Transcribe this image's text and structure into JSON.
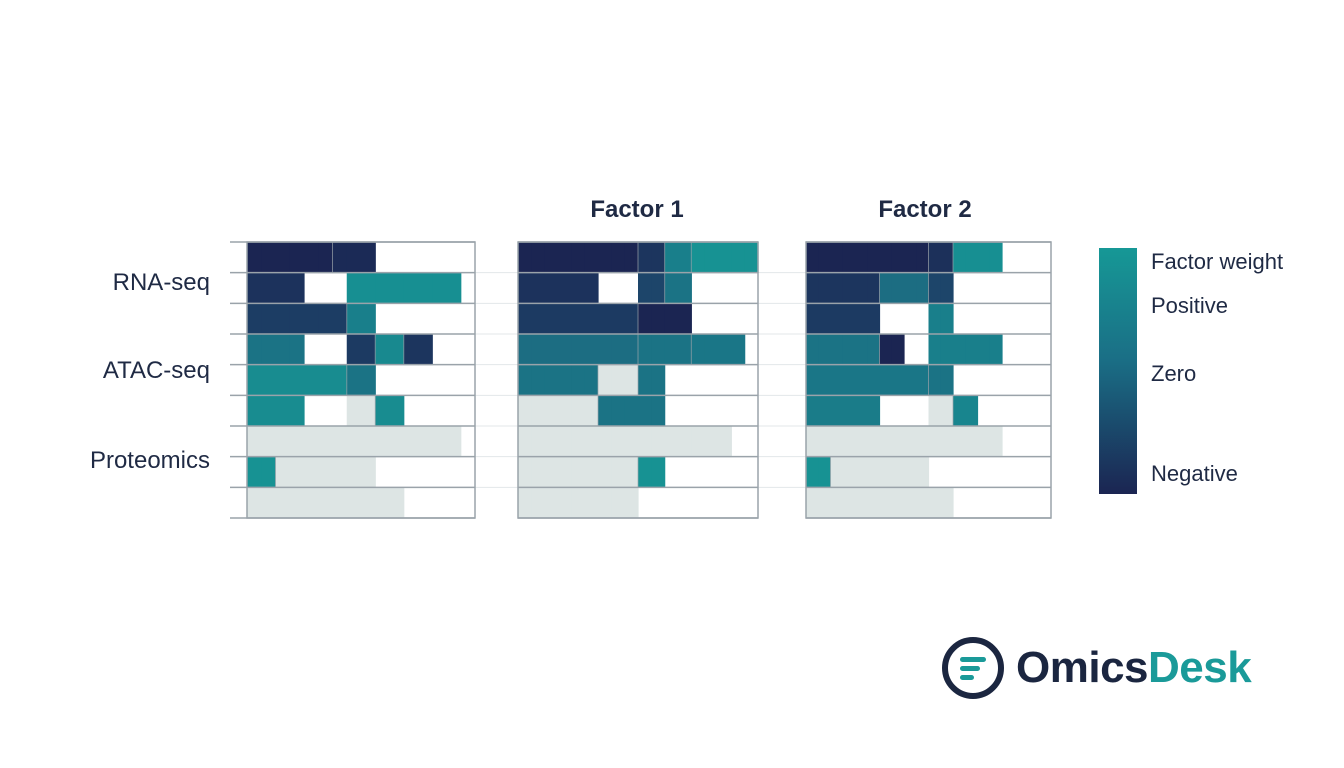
{
  "chart_data": {
    "type": "heatmap",
    "row_groups": [
      "RNA-seq",
      "ATAC-seq",
      "Proteomics"
    ],
    "panels": [
      {
        "title": "",
        "rows": [
          [
            -1,
            -1,
            -1,
            -1,
            -1,
            -1,
            -0.9,
            -0.9,
            -0.9,
            null,
            null,
            null,
            null,
            null,
            null,
            null
          ],
          [
            -0.75,
            -0.75,
            -0.75,
            -0.75,
            null,
            null,
            null,
            0.85,
            0.85,
            0.85,
            0.85,
            0.85,
            0.85,
            0.85,
            0.85,
            null
          ],
          [
            -0.55,
            -0.55,
            -0.55,
            -0.55,
            -0.55,
            -0.55,
            -0.55,
            0.6,
            0.6,
            null,
            null,
            null,
            null,
            null,
            null,
            null
          ],
          [
            0.4,
            0.4,
            0.4,
            0.4,
            null,
            null,
            null,
            -0.6,
            -0.6,
            0.75,
            0.75,
            -0.7,
            -0.7,
            null,
            null,
            null
          ],
          [
            0.8,
            0.8,
            0.8,
            0.8,
            0.8,
            0.8,
            0.8,
            0.4,
            0.4,
            null,
            null,
            null,
            null,
            null,
            null,
            null
          ],
          [
            0.8,
            0.8,
            0.8,
            0.8,
            null,
            null,
            null,
            0.05,
            0.05,
            0.8,
            0.8,
            null,
            null,
            null,
            null,
            null
          ],
          [
            0.05,
            0.05,
            0.05,
            0.05,
            0.05,
            0.05,
            0.05,
            0.05,
            0.05,
            0.05,
            0.05,
            0.05,
            0.05,
            0.05,
            0.05,
            null
          ],
          [
            0.9,
            0.9,
            0.05,
            0.05,
            0.05,
            0.05,
            0.05,
            0.05,
            0.05,
            null,
            null,
            null,
            null,
            null,
            null,
            null
          ],
          [
            0.05,
            0.05,
            0.05,
            0.05,
            0.05,
            0.05,
            0.05,
            0.05,
            0.05,
            0.05,
            0.05,
            null,
            null,
            null,
            null,
            null
          ]
        ]
      },
      {
        "title": "Factor 1",
        "rows": [
          [
            -1,
            -1,
            -1,
            -1,
            -1,
            -1,
            -1,
            -1,
            -1,
            -0.7,
            -0.7,
            0.6,
            0.6,
            0.9,
            0.9,
            0.9,
            0.9,
            0.9
          ],
          [
            -0.75,
            -0.75,
            -0.75,
            -0.75,
            -0.75,
            -0.75,
            null,
            null,
            null,
            -0.4,
            -0.4,
            0.4,
            0.4,
            null,
            null,
            null,
            null,
            null
          ],
          [
            -0.6,
            -0.6,
            -0.6,
            -0.6,
            -0.6,
            -0.6,
            -0.6,
            -0.6,
            -0.6,
            -1,
            -1,
            -1,
            -1,
            null,
            null,
            null,
            null,
            null
          ],
          [
            0.3,
            0.3,
            0.3,
            0.3,
            0.3,
            0.3,
            0.3,
            0.3,
            0.3,
            0.4,
            0.4,
            0.4,
            0.4,
            0.45,
            0.45,
            0.45,
            0.45,
            null
          ],
          [
            0.4,
            0.4,
            0.4,
            0.4,
            0.4,
            0.4,
            0.05,
            0.05,
            0.05,
            0.4,
            0.4,
            null,
            null,
            null,
            null,
            null,
            null,
            null
          ],
          [
            0.05,
            0.05,
            0.05,
            0.05,
            0.05,
            0.05,
            0.4,
            0.4,
            0.4,
            0.4,
            0.4,
            null,
            null,
            null,
            null,
            null,
            null,
            null
          ],
          [
            0.05,
            0.05,
            0.05,
            0.05,
            0.05,
            0.05,
            0.05,
            0.05,
            0.05,
            0.05,
            0.05,
            0.05,
            0.05,
            0.05,
            0.05,
            0.05,
            null,
            null
          ],
          [
            0.05,
            0.05,
            0.05,
            0.05,
            0.05,
            0.05,
            0.05,
            0.05,
            0.05,
            0.9,
            0.9,
            null,
            null,
            null,
            null,
            null,
            null,
            null
          ],
          [
            0.05,
            0.05,
            0.05,
            0.05,
            0.05,
            0.05,
            0.05,
            0.05,
            0.05,
            null,
            null,
            null,
            null,
            null,
            null,
            null,
            null,
            null
          ]
        ]
      },
      {
        "title": "Factor 2",
        "rows": [
          [
            -1,
            -1,
            -1,
            -1,
            -1,
            -1,
            -1,
            -1,
            -1,
            -1,
            -0.8,
            -0.8,
            0.85,
            0.85,
            0.85,
            0.85,
            null,
            null,
            null,
            null
          ],
          [
            -0.7,
            -0.7,
            -0.7,
            -0.7,
            -0.7,
            -0.7,
            0.3,
            0.3,
            0.3,
            0.3,
            -0.4,
            -0.4,
            null,
            null,
            null,
            null,
            null,
            null,
            null,
            null
          ],
          [
            -0.6,
            -0.6,
            -0.6,
            -0.6,
            -0.6,
            -0.6,
            null,
            null,
            null,
            null,
            0.6,
            0.6,
            null,
            null,
            null,
            null,
            null,
            null,
            null,
            null
          ],
          [
            0.4,
            0.4,
            0.4,
            0.4,
            0.4,
            0.4,
            -1,
            -1,
            null,
            null,
            0.6,
            0.6,
            0.6,
            0.6,
            0.6,
            0.6,
            null,
            null,
            null,
            null
          ],
          [
            0.45,
            0.45,
            0.45,
            0.45,
            0.45,
            0.45,
            0.45,
            0.45,
            0.45,
            0.45,
            0.4,
            0.4,
            null,
            null,
            null,
            null,
            null,
            null,
            null,
            null
          ],
          [
            0.55,
            0.55,
            0.55,
            0.55,
            0.55,
            0.55,
            null,
            null,
            null,
            null,
            0.05,
            0.05,
            0.7,
            0.7,
            null,
            null,
            null,
            null,
            null,
            null
          ],
          [
            0.05,
            0.05,
            0.05,
            0.05,
            0.05,
            0.05,
            0.05,
            0.05,
            0.05,
            0.05,
            0.05,
            0.05,
            0.05,
            0.05,
            0.05,
            0.05,
            null,
            null,
            null,
            null
          ],
          [
            0.9,
            0.9,
            0.05,
            0.05,
            0.05,
            0.05,
            0.05,
            0.05,
            0.05,
            0.05,
            null,
            null,
            null,
            null,
            null,
            null,
            null,
            null,
            null,
            null
          ],
          [
            0.05,
            0.05,
            0.05,
            0.05,
            0.05,
            0.05,
            0.05,
            0.05,
            0.05,
            0.05,
            0.05,
            0.05,
            null,
            null,
            null,
            null,
            null,
            null,
            null,
            null
          ]
        ]
      }
    ],
    "legend": {
      "title": "Factor weight",
      "labels": [
        "Positive",
        "Zero",
        "Negative"
      ],
      "range": [
        -1,
        1
      ],
      "placement": "right"
    },
    "colors": {
      "positive": "#169896",
      "mid": "#1e5a7a",
      "negative": "#1b2552",
      "near_zero": "#dde5e4",
      "empty": "#ffffff",
      "grid": "#9aa3aa"
    }
  },
  "brand": {
    "name_part1": "Omics",
    "name_part2": "Desk",
    "logo_icon": "list-lines-icon",
    "dark": "#1b2640",
    "accent": "#1a9a99"
  }
}
